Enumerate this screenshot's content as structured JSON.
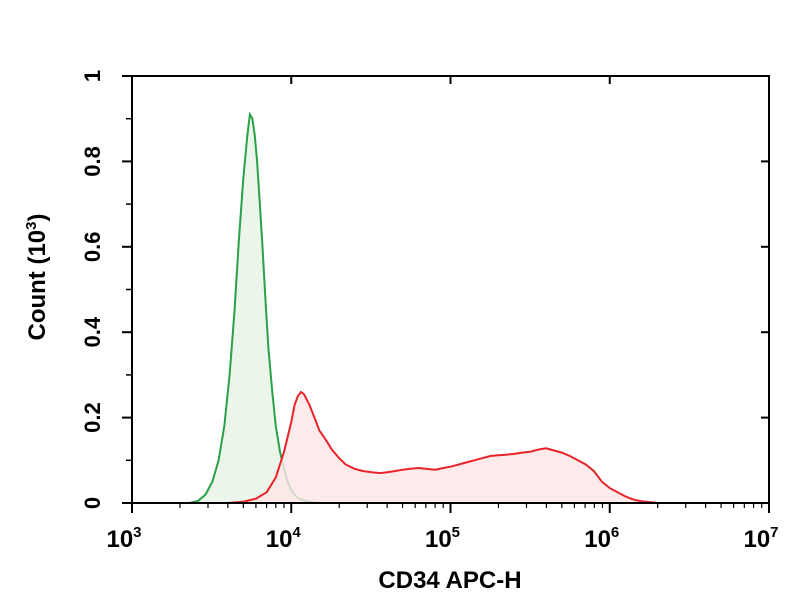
{
  "chart_data": {
    "type": "area",
    "xscale": "log",
    "xlim": [
      1000,
      10000000
    ],
    "ylim": [
      0,
      1
    ],
    "xlabel": "CD34 APC-H",
    "ylabel": "Count (10",
    "ylabel_exp": "3",
    "ylabel_close": ")",
    "yticks": [
      0,
      0.2,
      0.4,
      0.6,
      0.8,
      1
    ],
    "ytick_labels": [
      "0",
      "0.2",
      "0.4",
      "0.6",
      "0.8",
      "1"
    ],
    "xticks": [
      1000,
      10000,
      100000,
      1000000,
      10000000
    ],
    "xtick_labels": [
      {
        "base": "10",
        "exp": "3"
      },
      {
        "base": "10",
        "exp": "4"
      },
      {
        "base": "10",
        "exp": "5"
      },
      {
        "base": "10",
        "exp": "6"
      },
      {
        "base": "10",
        "exp": "7"
      }
    ],
    "grid": false,
    "series": [
      {
        "color": "#2aa04a",
        "fill": "#e6f3e3",
        "x": [
          2300,
          2600,
          2900,
          3200,
          3500,
          3800,
          4100,
          4400,
          4700,
          5000,
          5300,
          5500,
          5700,
          5900,
          6100,
          6300,
          6600,
          6900,
          7200,
          7600,
          8000,
          8500,
          9000,
          9500,
          10000,
          10500,
          11000,
          12000,
          13000,
          14000,
          15000
        ],
        "y": [
          0,
          0.005,
          0.02,
          0.05,
          0.1,
          0.18,
          0.3,
          0.45,
          0.62,
          0.76,
          0.86,
          0.91,
          0.9,
          0.86,
          0.8,
          0.72,
          0.6,
          0.47,
          0.36,
          0.26,
          0.18,
          0.12,
          0.08,
          0.05,
          0.03,
          0.02,
          0.012,
          0.006,
          0.003,
          0.001,
          0
        ]
      },
      {
        "color": "#e8232a",
        "fill": "#fde6e6",
        "x": [
          4000,
          5000,
          6000,
          7000,
          8000,
          9000,
          10000,
          10500,
          11000,
          11500,
          12000,
          13000,
          14000,
          15000,
          16000,
          17000,
          18000,
          20000,
          22000,
          25000,
          28000,
          32000,
          36000,
          40000,
          45000,
          50000,
          56000,
          63000,
          70000,
          80000,
          90000,
          100000,
          112000,
          126000,
          141000,
          158000,
          178000,
          200000,
          224000,
          251000,
          282000,
          316000,
          355000,
          398000,
          447000,
          501000,
          562000,
          631000,
          708000,
          794000,
          891000,
          1000000,
          1120000,
          1260000,
          1410000,
          1580000,
          1780000,
          2000000
        ],
        "y": [
          0,
          0.003,
          0.01,
          0.025,
          0.06,
          0.12,
          0.19,
          0.23,
          0.25,
          0.26,
          0.255,
          0.23,
          0.2,
          0.17,
          0.155,
          0.14,
          0.125,
          0.105,
          0.09,
          0.08,
          0.075,
          0.072,
          0.07,
          0.072,
          0.075,
          0.078,
          0.08,
          0.082,
          0.08,
          0.078,
          0.082,
          0.085,
          0.09,
          0.095,
          0.1,
          0.105,
          0.11,
          0.112,
          0.113,
          0.115,
          0.118,
          0.12,
          0.125,
          0.128,
          0.123,
          0.118,
          0.11,
          0.1,
          0.09,
          0.075,
          0.05,
          0.035,
          0.025,
          0.015,
          0.008,
          0.004,
          0.002,
          0
        ]
      }
    ]
  }
}
